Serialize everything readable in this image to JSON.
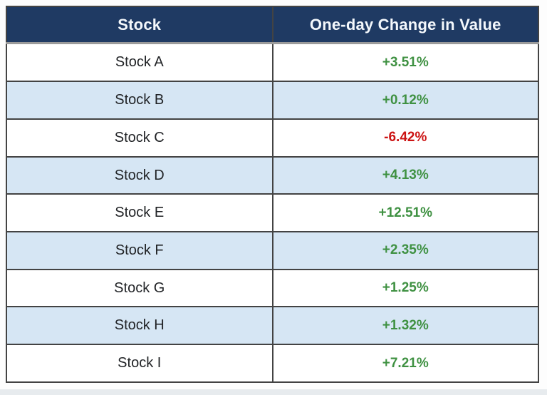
{
  "table": {
    "headers": [
      {
        "label": "Stock"
      },
      {
        "label": "One-day Change in Value"
      }
    ],
    "rows": [
      {
        "stock": "Stock A",
        "change": "+3.51%",
        "direction": "up"
      },
      {
        "stock": "Stock B",
        "change": "+0.12%",
        "direction": "up"
      },
      {
        "stock": "Stock C",
        "change": "-6.42%",
        "direction": "down"
      },
      {
        "stock": "Stock D",
        "change": "+4.13%",
        "direction": "up"
      },
      {
        "stock": "Stock E",
        "change": "+12.51%",
        "direction": "up"
      },
      {
        "stock": "Stock F",
        "change": "+2.35%",
        "direction": "up"
      },
      {
        "stock": "Stock G",
        "change": "+1.25%",
        "direction": "up"
      },
      {
        "stock": "Stock H",
        "change": "+1.32%",
        "direction": "up"
      },
      {
        "stock": "Stock I",
        "change": "+7.21%",
        "direction": "up"
      }
    ]
  },
  "colors": {
    "header_bg": "#1f3a63",
    "header_text": "#f4f8fc",
    "row_alt_bg": "#d6e6f4",
    "positive_text": "#3f9142",
    "negative_text": "#cc1414"
  },
  "chart_data": {
    "type": "table",
    "title": "",
    "columns": [
      "Stock",
      "One-day Change in Value"
    ],
    "categories": [
      "Stock A",
      "Stock B",
      "Stock C",
      "Stock D",
      "Stock E",
      "Stock F",
      "Stock G",
      "Stock H",
      "Stock I"
    ],
    "values": [
      3.51,
      0.12,
      -6.42,
      4.13,
      12.51,
      2.35,
      1.25,
      1.32,
      7.21
    ],
    "value_format": "percent",
    "layout": "two-column table, alternating row shading, header navy with white bold text, positive values green, negative values red"
  }
}
